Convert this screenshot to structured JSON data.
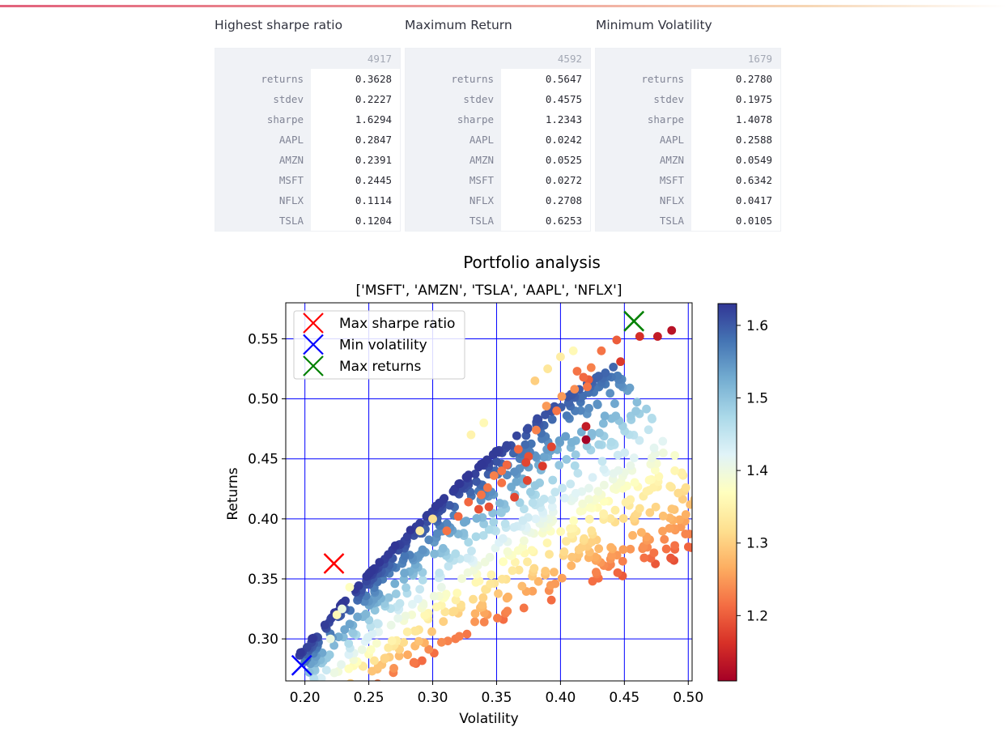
{
  "tables": [
    {
      "title": "Highest sharpe ratio",
      "column": "4917",
      "rows": [
        {
          "label": "returns",
          "value": "0.3628"
        },
        {
          "label": "stdev",
          "value": "0.2227"
        },
        {
          "label": "sharpe",
          "value": "1.6294"
        },
        {
          "label": "AAPL",
          "value": "0.2847"
        },
        {
          "label": "AMZN",
          "value": "0.2391"
        },
        {
          "label": "MSFT",
          "value": "0.2445"
        },
        {
          "label": "NFLX",
          "value": "0.1114"
        },
        {
          "label": "TSLA",
          "value": "0.1204"
        }
      ]
    },
    {
      "title": "Maximum Return",
      "column": "4592",
      "rows": [
        {
          "label": "returns",
          "value": "0.5647"
        },
        {
          "label": "stdev",
          "value": "0.4575"
        },
        {
          "label": "sharpe",
          "value": "1.2343"
        },
        {
          "label": "AAPL",
          "value": "0.0242"
        },
        {
          "label": "AMZN",
          "value": "0.0525"
        },
        {
          "label": "MSFT",
          "value": "0.0272"
        },
        {
          "label": "NFLX",
          "value": "0.2708"
        },
        {
          "label": "TSLA",
          "value": "0.6253"
        }
      ]
    },
    {
      "title": "Minimum Volatility",
      "column": "1679",
      "rows": [
        {
          "label": "returns",
          "value": "0.2780"
        },
        {
          "label": "stdev",
          "value": "0.1975"
        },
        {
          "label": "sharpe",
          "value": "1.4078"
        },
        {
          "label": "AAPL",
          "value": "0.2588"
        },
        {
          "label": "AMZN",
          "value": "0.0549"
        },
        {
          "label": "MSFT",
          "value": "0.6342"
        },
        {
          "label": "NFLX",
          "value": "0.0417"
        },
        {
          "label": "TSLA",
          "value": "0.0105"
        }
      ]
    }
  ],
  "chart_data": {
    "type": "scatter",
    "title": "Portfolio analysis",
    "subtitle": "['MSFT', 'AMZN', 'TSLA', 'AAPL', 'NFLX']",
    "xlabel": "Volatility",
    "ylabel": "Returns",
    "xlim": [
      0.185,
      0.503
    ],
    "ylim": [
      0.265,
      0.58
    ],
    "xticks": [
      "0.20",
      "0.25",
      "0.30",
      "0.35",
      "0.40",
      "0.45",
      "0.50"
    ],
    "yticks": [
      "0.30",
      "0.35",
      "0.40",
      "0.45",
      "0.50",
      "0.55"
    ],
    "grid": true,
    "grid_color": "#0000ff",
    "colorbar": {
      "colormap": "RdYlBu",
      "range": [
        1.11,
        1.63
      ],
      "ticks": [
        "1.2",
        "1.3",
        "1.4",
        "1.5",
        "1.6"
      ]
    },
    "legend_position": "upper-left",
    "markers": [
      {
        "name": "Max sharpe ratio",
        "x": 0.2227,
        "y": 0.3628,
        "color": "#ff0000"
      },
      {
        "name": "Min volatility",
        "x": 0.1975,
        "y": 0.278,
        "color": "#0000ff"
      },
      {
        "name": "Max returns",
        "x": 0.4575,
        "y": 0.5647,
        "color": "#008000"
      }
    ],
    "series": [
      {
        "name": "portfolios",
        "points": [
          [
            0.42,
            0.477,
            1.14
          ],
          [
            0.42,
            0.466,
            1.11
          ],
          [
            0.487,
            0.557,
            1.13
          ],
          [
            0.476,
            0.552,
            1.14
          ],
          [
            0.462,
            0.552,
            1.16
          ],
          [
            0.447,
            0.531,
            1.17
          ],
          [
            0.444,
            0.549,
            1.2
          ],
          [
            0.432,
            0.54,
            1.22
          ],
          [
            0.424,
            0.526,
            1.23
          ],
          [
            0.422,
            0.516,
            1.2
          ],
          [
            0.413,
            0.523,
            1.22
          ],
          [
            0.418,
            0.518,
            1.21
          ],
          [
            0.421,
            0.51,
            1.22
          ],
          [
            0.411,
            0.508,
            1.24
          ],
          [
            0.393,
            0.46,
            1.18
          ],
          [
            0.386,
            0.444,
            1.17
          ],
          [
            0.374,
            0.432,
            1.18
          ],
          [
            0.375,
            0.452,
            1.19
          ],
          [
            0.373,
            0.447,
            1.18
          ],
          [
            0.364,
            0.418,
            1.18
          ],
          [
            0.354,
            0.43,
            1.22
          ],
          [
            0.354,
            0.44,
            1.22
          ],
          [
            0.344,
            0.41,
            1.19
          ],
          [
            0.336,
            0.408,
            1.19
          ],
          [
            0.32,
            0.402,
            1.21
          ],
          [
            0.311,
            0.39,
            1.22
          ],
          [
            0.328,
            0.414,
            1.21
          ],
          [
            0.367,
            0.458,
            1.21
          ],
          [
            0.381,
            0.474,
            1.23
          ],
          [
            0.397,
            0.49,
            1.22
          ],
          [
            0.401,
            0.502,
            1.25
          ],
          [
            0.389,
            0.494,
            1.25
          ],
          [
            0.338,
            0.42,
            1.22
          ],
          [
            0.343,
            0.426,
            1.22
          ],
          [
            0.358,
            0.445,
            1.21
          ],
          [
            0.348,
            0.436,
            1.23
          ],
          [
            0.235,
            0.343,
            1.37
          ],
          [
            0.225,
            0.32,
            1.36
          ],
          [
            0.22,
            0.3,
            1.4
          ],
          [
            0.229,
            0.325,
            1.4
          ],
          [
            0.38,
            0.515,
            1.3
          ],
          [
            0.39,
            0.525,
            1.33
          ],
          [
            0.4,
            0.535,
            1.34
          ],
          [
            0.41,
            0.54,
            1.36
          ],
          [
            0.33,
            0.47,
            1.35
          ],
          [
            0.34,
            0.48,
            1.36
          ],
          [
            0.3,
            0.4,
            1.32
          ],
          [
            0.29,
            0.39,
            1.34
          ]
        ]
      }
    ]
  }
}
